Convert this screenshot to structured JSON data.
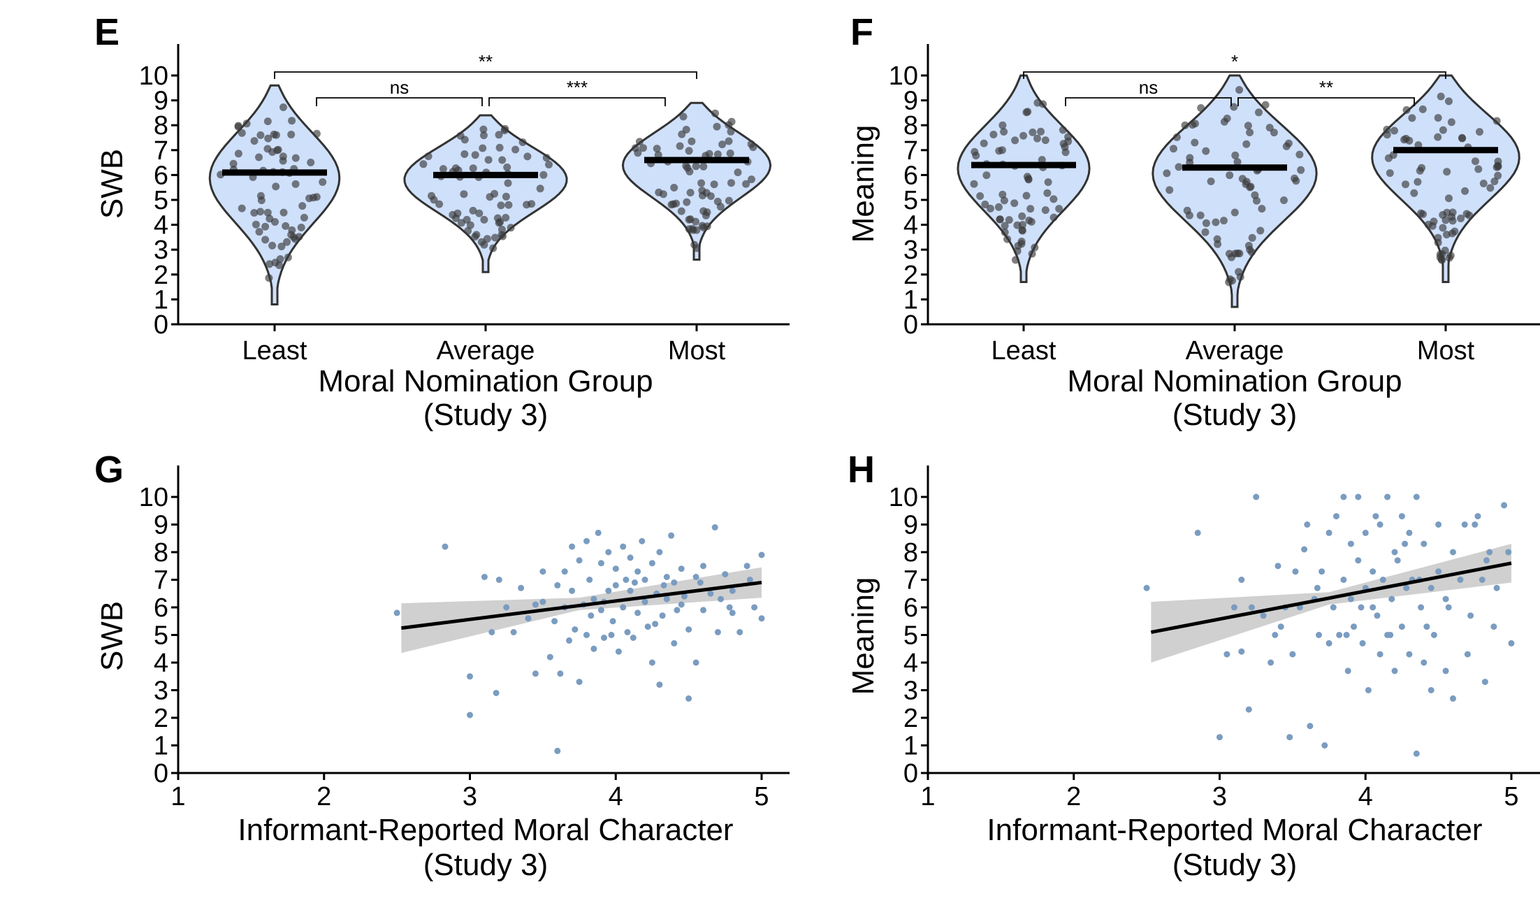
{
  "colors": {
    "violin_fill": "#cfe0fb",
    "violin_stroke": "#333333",
    "violin_point": "#3a3a3a",
    "scatter_point": "#7a9cc0",
    "ci_band": "#c8c8c8",
    "fit_line": "#000000",
    "axis": "#000000"
  },
  "chart_data": [
    {
      "panel": "E",
      "type": "violin",
      "categories": [
        "Least",
        "Average",
        "Most"
      ],
      "medians": [
        6.1,
        6.0,
        6.6
      ],
      "ranges": [
        [
          0.8,
          9.6
        ],
        [
          2.1,
          8.4
        ],
        [
          2.6,
          8.9
        ]
      ],
      "xlabel": "Moral Nomination Group",
      "xlabel2": "(Study 3)",
      "ylabel": "SWB",
      "ylim": [
        0,
        10
      ],
      "yticks": [
        "0",
        "1",
        "2",
        "3",
        "4",
        "5",
        "6",
        "7",
        "8",
        "9",
        "10"
      ],
      "comparisons": [
        {
          "from": "Least",
          "to": "Most",
          "label": "**"
        },
        {
          "from": "Least",
          "to": "Average",
          "label": "ns"
        },
        {
          "from": "Average",
          "to": "Most",
          "label": "***"
        }
      ]
    },
    {
      "panel": "F",
      "type": "violin",
      "categories": [
        "Least",
        "Average",
        "Most"
      ],
      "medians": [
        6.4,
        6.3,
        7.0
      ],
      "ranges": [
        [
          1.7,
          10.0
        ],
        [
          0.7,
          10.0
        ],
        [
          1.7,
          10.0
        ]
      ],
      "xlabel": "Moral Nomination Group",
      "xlabel2": "(Study 3)",
      "ylabel": "Meaning",
      "ylim": [
        0,
        10
      ],
      "yticks": [
        "0",
        "1",
        "2",
        "3",
        "4",
        "5",
        "6",
        "7",
        "8",
        "9",
        "10"
      ],
      "comparisons": [
        {
          "from": "Least",
          "to": "Most",
          "label": "*"
        },
        {
          "from": "Least",
          "to": "Average",
          "label": "ns"
        },
        {
          "from": "Average",
          "to": "Most",
          "label": "**"
        }
      ]
    },
    {
      "panel": "G",
      "type": "scatter",
      "xlabel": "Informant-Reported Moral Character",
      "xlabel2": "(Study 3)",
      "ylabel": "SWB",
      "xlim": [
        1,
        5.2
      ],
      "ylim": [
        0,
        10
      ],
      "xticks": [
        "1",
        "2",
        "3",
        "4",
        "5"
      ],
      "yticks": [
        "0",
        "1",
        "2",
        "3",
        "4",
        "5",
        "6",
        "7",
        "8",
        "9",
        "10"
      ],
      "fit": {
        "x": [
          2.53,
          5.0
        ],
        "y": [
          5.25,
          6.9
        ]
      },
      "ci": {
        "x": [
          2.53,
          3.75,
          5.0
        ],
        "lower": [
          4.35,
          5.9,
          6.35
        ],
        "upper": [
          6.15,
          6.35,
          7.45
        ]
      },
      "points": [
        [
          2.5,
          5.8
        ],
        [
          2.83,
          8.2
        ],
        [
          3.0,
          3.5
        ],
        [
          3.0,
          2.1
        ],
        [
          3.1,
          7.1
        ],
        [
          3.15,
          5.1
        ],
        [
          3.18,
          2.9
        ],
        [
          3.2,
          7.0
        ],
        [
          3.25,
          6.0
        ],
        [
          3.3,
          5.1
        ],
        [
          3.35,
          6.7
        ],
        [
          3.4,
          5.6
        ],
        [
          3.45,
          3.6
        ],
        [
          3.45,
          6.1
        ],
        [
          3.5,
          7.3
        ],
        [
          3.5,
          6.2
        ],
        [
          3.55,
          4.2
        ],
        [
          3.58,
          5.5
        ],
        [
          3.6,
          6.8
        ],
        [
          3.6,
          0.8
        ],
        [
          3.62,
          3.6
        ],
        [
          3.65,
          6.0
        ],
        [
          3.65,
          7.3
        ],
        [
          3.68,
          4.8
        ],
        [
          3.7,
          8.2
        ],
        [
          3.7,
          6.6
        ],
        [
          3.72,
          5.2
        ],
        [
          3.75,
          3.3
        ],
        [
          3.75,
          7.7
        ],
        [
          3.78,
          6.1
        ],
        [
          3.8,
          8.4
        ],
        [
          3.8,
          5.0
        ],
        [
          3.82,
          7.0
        ],
        [
          3.85,
          6.3
        ],
        [
          3.85,
          4.5
        ],
        [
          3.88,
          8.7
        ],
        [
          3.9,
          5.9
        ],
        [
          3.9,
          7.6
        ],
        [
          3.92,
          4.9
        ],
        [
          3.95,
          6.6
        ],
        [
          3.95,
          8.0
        ],
        [
          3.98,
          5.5
        ],
        [
          4.0,
          6.8
        ],
        [
          4.0,
          7.4
        ],
        [
          4.02,
          4.4
        ],
        [
          4.05,
          8.2
        ],
        [
          4.05,
          6.0
        ],
        [
          4.08,
          5.1
        ],
        [
          4.1,
          7.8
        ],
        [
          4.1,
          6.6
        ],
        [
          4.12,
          4.9
        ],
        [
          4.15,
          7.3
        ],
        [
          4.15,
          5.8
        ],
        [
          4.18,
          8.4
        ],
        [
          4.2,
          6.2
        ],
        [
          4.2,
          7.0
        ],
        [
          4.22,
          5.3
        ],
        [
          4.25,
          7.6
        ],
        [
          4.25,
          4.0
        ],
        [
          4.28,
          6.5
        ],
        [
          4.3,
          8.0
        ],
        [
          4.3,
          3.2
        ],
        [
          4.32,
          5.7
        ],
        [
          4.35,
          7.1
        ],
        [
          4.35,
          6.3
        ],
        [
          4.38,
          8.6
        ],
        [
          4.4,
          4.7
        ],
        [
          4.4,
          6.9
        ],
        [
          4.42,
          5.9
        ],
        [
          4.45,
          7.4
        ],
        [
          4.45,
          6.1
        ],
        [
          4.5,
          2.7
        ],
        [
          4.5,
          5.2
        ],
        [
          4.55,
          7.1
        ],
        [
          4.55,
          4.0
        ],
        [
          4.6,
          5.9
        ],
        [
          4.6,
          7.5
        ],
        [
          4.65,
          6.5
        ],
        [
          4.68,
          8.9
        ],
        [
          4.7,
          5.1
        ],
        [
          4.72,
          6.3
        ],
        [
          4.75,
          7.2
        ],
        [
          4.8,
          5.8
        ],
        [
          4.8,
          6.6
        ],
        [
          4.85,
          5.1
        ],
        [
          4.9,
          7.5
        ],
        [
          4.92,
          7.0
        ],
        [
          4.95,
          6.0
        ],
        [
          5.0,
          5.6
        ],
        [
          5.0,
          7.9
        ],
        [
          3.92,
          6.2
        ],
        [
          4.07,
          7.0
        ],
        [
          4.27,
          5.4
        ],
        [
          4.47,
          6.4
        ],
        [
          3.83,
          5.7
        ],
        [
          4.13,
          6.9
        ],
        [
          3.97,
          5.0
        ],
        [
          4.33,
          6.8
        ],
        [
          4.58,
          6.9
        ],
        [
          4.78,
          6.0
        ]
      ]
    },
    {
      "panel": "H",
      "type": "scatter",
      "xlabel": "Informant-Reported Moral Character",
      "xlabel2": "(Study 3)",
      "ylabel": "Meaning",
      "xlim": [
        1,
        5.2
      ],
      "ylim": [
        0,
        10
      ],
      "xticks": [
        "1",
        "2",
        "3",
        "4",
        "5"
      ],
      "yticks": [
        "0",
        "1",
        "2",
        "3",
        "4",
        "5",
        "6",
        "7",
        "8",
        "9",
        "10"
      ],
      "fit": {
        "x": [
          2.53,
          5.0
        ],
        "y": [
          5.1,
          7.6
        ]
      },
      "ci": {
        "x": [
          2.53,
          3.75,
          5.0
        ],
        "lower": [
          4.0,
          6.1,
          6.9
        ],
        "upper": [
          6.2,
          6.55,
          8.3
        ]
      },
      "points": [
        [
          2.5,
          6.7
        ],
        [
          2.85,
          8.7
        ],
        [
          3.0,
          1.3
        ],
        [
          3.05,
          4.3
        ],
        [
          3.1,
          6.0
        ],
        [
          3.15,
          4.4
        ],
        [
          3.15,
          7.0
        ],
        [
          3.2,
          2.3
        ],
        [
          3.22,
          6.0
        ],
        [
          3.25,
          10.0
        ],
        [
          3.3,
          5.7
        ],
        [
          3.35,
          4.0
        ],
        [
          3.38,
          5.0
        ],
        [
          3.4,
          7.5
        ],
        [
          3.42,
          5.3
        ],
        [
          3.45,
          6.0
        ],
        [
          3.48,
          1.3
        ],
        [
          3.5,
          4.3
        ],
        [
          3.52,
          7.3
        ],
        [
          3.55,
          6.0
        ],
        [
          3.58,
          8.1
        ],
        [
          3.6,
          9.0
        ],
        [
          3.62,
          1.7
        ],
        [
          3.65,
          6.3
        ],
        [
          3.68,
          5.0
        ],
        [
          3.7,
          7.3
        ],
        [
          3.72,
          1.0
        ],
        [
          3.75,
          4.7
        ],
        [
          3.75,
          8.7
        ],
        [
          3.78,
          6.0
        ],
        [
          3.8,
          9.3
        ],
        [
          3.82,
          5.0
        ],
        [
          3.85,
          7.0
        ],
        [
          3.85,
          10.0
        ],
        [
          3.88,
          3.7
        ],
        [
          3.9,
          8.3
        ],
        [
          3.9,
          6.3
        ],
        [
          3.92,
          5.3
        ],
        [
          3.95,
          7.7
        ],
        [
          3.95,
          10.0
        ],
        [
          3.98,
          4.7
        ],
        [
          4.0,
          6.7
        ],
        [
          4.0,
          8.7
        ],
        [
          4.02,
          3.0
        ],
        [
          4.05,
          6.0
        ],
        [
          4.05,
          7.3
        ],
        [
          4.08,
          5.7
        ],
        [
          4.1,
          9.0
        ],
        [
          4.1,
          4.3
        ],
        [
          4.12,
          7.0
        ],
        [
          4.15,
          5.0
        ],
        [
          4.15,
          10.0
        ],
        [
          4.18,
          6.3
        ],
        [
          4.2,
          8.0
        ],
        [
          4.2,
          3.7
        ],
        [
          4.22,
          7.7
        ],
        [
          4.25,
          5.3
        ],
        [
          4.25,
          9.3
        ],
        [
          4.28,
          6.7
        ],
        [
          4.3,
          4.3
        ],
        [
          4.3,
          8.7
        ],
        [
          4.32,
          7.0
        ],
        [
          4.35,
          0.7
        ],
        [
          4.35,
          10.0
        ],
        [
          4.38,
          6.0
        ],
        [
          4.4,
          4.0
        ],
        [
          4.4,
          8.3
        ],
        [
          4.42,
          5.3
        ],
        [
          4.45,
          6.7
        ],
        [
          4.45,
          3.0
        ],
        [
          4.5,
          7.3
        ],
        [
          4.5,
          9.0
        ],
        [
          4.55,
          3.7
        ],
        [
          4.55,
          6.3
        ],
        [
          4.6,
          2.7
        ],
        [
          4.6,
          8.0
        ],
        [
          4.65,
          7.0
        ],
        [
          4.68,
          9.0
        ],
        [
          4.7,
          4.3
        ],
        [
          4.72,
          5.7
        ],
        [
          4.75,
          9.0
        ],
        [
          4.8,
          7.0
        ],
        [
          4.82,
          3.3
        ],
        [
          4.85,
          8.0
        ],
        [
          4.88,
          5.3
        ],
        [
          4.9,
          6.7
        ],
        [
          4.95,
          9.7
        ],
        [
          4.98,
          8.0
        ],
        [
          5.0,
          4.7
        ],
        [
          4.83,
          7.7
        ],
        [
          3.97,
          6.0
        ],
        [
          4.17,
          5.0
        ],
        [
          4.37,
          7.0
        ],
        [
          4.57,
          6.0
        ],
        [
          3.87,
          5.0
        ],
        [
          4.27,
          8.3
        ],
        [
          4.07,
          9.3
        ],
        [
          4.47,
          5.0
        ],
        [
          3.67,
          6.7
        ],
        [
          4.77,
          9.3
        ]
      ]
    }
  ]
}
